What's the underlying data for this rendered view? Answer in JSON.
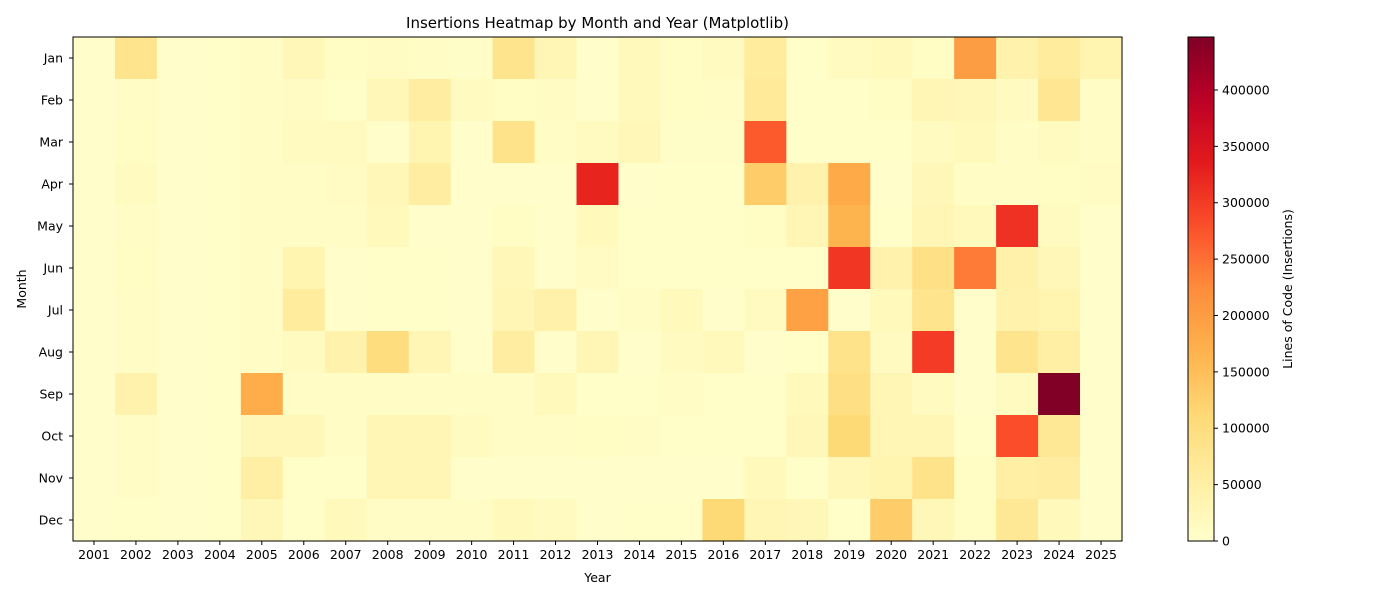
{
  "chart_data": {
    "type": "heatmap",
    "title": "Insertions Heatmap by Month and Year (Matplotlib)",
    "xlabel": "Year",
    "ylabel": "Month",
    "colorbar_label": "Lines of Code (Insertions)",
    "colormap": "YlOrRd",
    "vmin": 0,
    "vmax": 447000,
    "colorbar_ticks": [
      0,
      50000,
      100000,
      150000,
      200000,
      250000,
      300000,
      350000,
      400000
    ],
    "colorbar_tick_labels": [
      "0",
      "50000",
      "100000",
      "150000",
      "200000",
      "250000",
      "300000",
      "350000",
      "400000"
    ],
    "x": [
      "2001",
      "2002",
      "2003",
      "2004",
      "2005",
      "2006",
      "2007",
      "2008",
      "2009",
      "2010",
      "2011",
      "2012",
      "2013",
      "2014",
      "2015",
      "2016",
      "2017",
      "2018",
      "2019",
      "2020",
      "2021",
      "2022",
      "2023",
      "2024",
      "2025"
    ],
    "y": [
      "Jan",
      "Feb",
      "Mar",
      "Apr",
      "May",
      "Jun",
      "Jul",
      "Aug",
      "Sep",
      "Oct",
      "Nov",
      "Dec"
    ],
    "values": [
      [
        3000,
        80000,
        3000,
        5000,
        8000,
        25000,
        10000,
        12000,
        8000,
        6000,
        80000,
        30000,
        3000,
        20000,
        10000,
        15000,
        60000,
        5000,
        15000,
        20000,
        10000,
        200000,
        40000,
        60000,
        35000
      ],
      [
        3000,
        8000,
        3000,
        5000,
        8000,
        12000,
        5000,
        25000,
        55000,
        15000,
        10000,
        12000,
        3000,
        20000,
        10000,
        8000,
        65000,
        5000,
        5000,
        10000,
        30000,
        25000,
        15000,
        75000,
        8000
      ],
      [
        3000,
        10000,
        3000,
        5000,
        8000,
        15000,
        15000,
        3000,
        35000,
        3000,
        85000,
        8000,
        15000,
        25000,
        6000,
        6000,
        270000,
        5000,
        5000,
        5000,
        15000,
        20000,
        8000,
        15000,
        8000
      ],
      [
        3000,
        15000,
        3000,
        5000,
        8000,
        8000,
        12000,
        25000,
        55000,
        3000,
        3000,
        3000,
        325000,
        3000,
        5000,
        5000,
        130000,
        40000,
        180000,
        3000,
        25000,
        8000,
        8000,
        10000,
        12000
      ],
      [
        3000,
        8000,
        3000,
        5000,
        8000,
        8000,
        8000,
        20000,
        3000,
        3000,
        10000,
        3000,
        20000,
        5000,
        5000,
        5000,
        10000,
        30000,
        165000,
        5000,
        30000,
        20000,
        310000,
        15000,
        3000
      ],
      [
        3000,
        10000,
        3000,
        5000,
        8000,
        35000,
        3000,
        5000,
        5000,
        3000,
        25000,
        3000,
        12000,
        5000,
        5000,
        5000,
        5000,
        5000,
        305000,
        40000,
        90000,
        240000,
        45000,
        25000,
        3000
      ],
      [
        3000,
        8000,
        3000,
        5000,
        8000,
        60000,
        3000,
        5000,
        5000,
        3000,
        30000,
        45000,
        3000,
        8000,
        20000,
        3000,
        15000,
        195000,
        3000,
        20000,
        80000,
        3000,
        40000,
        35000,
        3000
      ],
      [
        3000,
        8000,
        3000,
        5000,
        8000,
        15000,
        40000,
        100000,
        30000,
        3000,
        55000,
        3000,
        30000,
        3000,
        15000,
        20000,
        3000,
        5000,
        85000,
        15000,
        300000,
        3000,
        80000,
        50000,
        3000
      ],
      [
        3000,
        40000,
        3000,
        5000,
        175000,
        8000,
        8000,
        8000,
        8000,
        8000,
        8000,
        20000,
        5000,
        5000,
        8000,
        5000,
        5000,
        20000,
        95000,
        30000,
        15000,
        3000,
        15000,
        447000,
        3000
      ],
      [
        3000,
        8000,
        3000,
        5000,
        25000,
        25000,
        8000,
        30000,
        30000,
        15000,
        8000,
        8000,
        10000,
        8000,
        5000,
        5000,
        5000,
        25000,
        110000,
        30000,
        30000,
        5000,
        280000,
        70000,
        3000
      ],
      [
        3000,
        8000,
        3000,
        5000,
        50000,
        5000,
        5000,
        30000,
        30000,
        3000,
        3000,
        3000,
        3000,
        3000,
        3000,
        3000,
        20000,
        5000,
        25000,
        35000,
        85000,
        10000,
        50000,
        55000,
        3000
      ],
      [
        3000,
        5000,
        3000,
        5000,
        25000,
        5000,
        20000,
        8000,
        8000,
        8000,
        20000,
        15000,
        3000,
        5000,
        5000,
        110000,
        30000,
        25000,
        5000,
        130000,
        25000,
        10000,
        70000,
        20000,
        3000
      ]
    ]
  }
}
